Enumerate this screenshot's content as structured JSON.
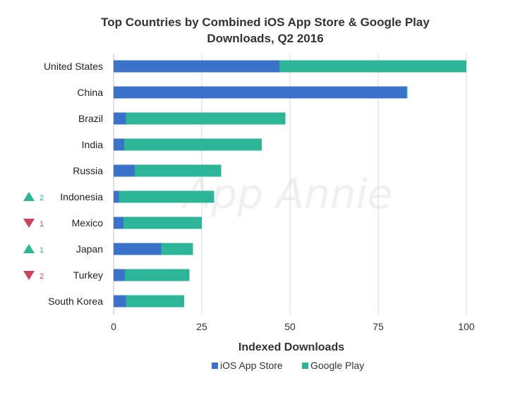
{
  "chart_data": {
    "type": "bar",
    "orientation": "horizontal",
    "stacked": true,
    "title_lines": [
      "Top Countries by Combined iOS App Store & Google Play",
      "Downloads, Q2 2016"
    ],
    "xlabel": "Indexed Downloads",
    "ylabel": "",
    "xlim": [
      0,
      100
    ],
    "x_ticks": [
      0,
      25,
      50,
      75,
      100
    ],
    "grid": "vertical",
    "legend_position": "bottom",
    "watermark": "App Annie",
    "categories": [
      "United States",
      "China",
      "Brazil",
      "India",
      "Russia",
      "Indonesia",
      "Mexico",
      "Japan",
      "Turkey",
      "South Korea"
    ],
    "series": [
      {
        "name": "iOS App Store",
        "color": "#3a73c9",
        "values": [
          47,
          83,
          3.5,
          3,
          6,
          1.5,
          2.8,
          13.5,
          3.2,
          3.5
        ]
      },
      {
        "name": "Google Play",
        "color": "#2db59a",
        "values": [
          53,
          0.3,
          45.2,
          39,
          24.5,
          27,
          22.2,
          9,
          18.3,
          16.5
        ]
      }
    ],
    "rank_changes": [
      {
        "category": "Indonesia",
        "direction": "up",
        "amount": "2",
        "color": "#2db59a"
      },
      {
        "category": "Mexico",
        "direction": "down",
        "amount": "1",
        "color": "#c9455f"
      },
      {
        "category": "Japan",
        "direction": "up",
        "amount": "1",
        "color": "#2db59a"
      },
      {
        "category": "Turkey",
        "direction": "down",
        "amount": "2",
        "color": "#c9455f"
      }
    ],
    "colors": {
      "grid": "#d9d9d9",
      "axis": "#bfbfbf"
    }
  }
}
